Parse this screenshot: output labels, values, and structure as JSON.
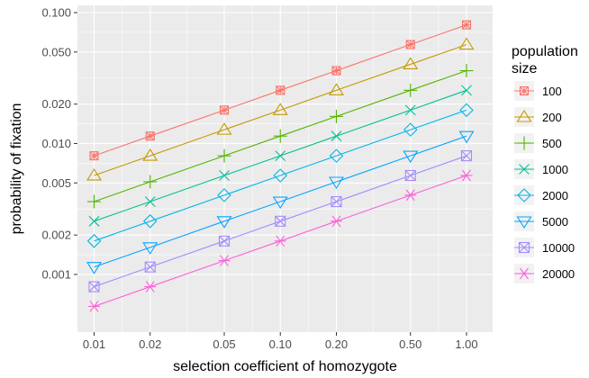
{
  "chart_data": {
    "type": "line",
    "title": "",
    "xlabel": "selection coefficient of homozygote",
    "ylabel": "probability of fixation",
    "x_scale": "log",
    "y_scale": "log",
    "xlim": [
      0.01,
      1.0
    ],
    "ylim": [
      0.00046,
      0.1
    ],
    "x": [
      0.01,
      0.02,
      0.05,
      0.1,
      0.2,
      0.5,
      1.0
    ],
    "x_tick_values": [
      0.01,
      0.02,
      0.05,
      0.1,
      0.2,
      0.5,
      1.0
    ],
    "x_tick_labels": [
      "0.01",
      "0.02",
      "0.05",
      "0.10",
      "0.20",
      "0.50",
      "1.00"
    ],
    "y_tick_values": [
      0.001,
      0.002,
      0.005,
      0.01,
      0.02,
      0.05,
      0.1
    ],
    "y_tick_labels": [
      "0.001",
      "0.002",
      "0.005",
      "0.010",
      "0.020",
      "0.050",
      "0.100"
    ],
    "grid": true,
    "panel_background": "#ebebeb",
    "grid_color": "#ffffff",
    "legend": {
      "title_line1": "population",
      "title_line2": "size",
      "position": "right"
    },
    "series": [
      {
        "name": "100",
        "color": "#F8766D",
        "shape": "square-cross",
        "values": [
          0.00806,
          0.0114,
          0.018,
          0.0255,
          0.036,
          0.057,
          0.0806
        ]
      },
      {
        "name": "200",
        "color": "#C49A00",
        "shape": "triangle-up",
        "values": [
          0.0057,
          0.00806,
          0.01275,
          0.018,
          0.0255,
          0.0403,
          0.057
        ]
      },
      {
        "name": "500",
        "color": "#53B400",
        "shape": "plus",
        "values": [
          0.0036,
          0.0051,
          0.00806,
          0.0114,
          0.0161,
          0.0255,
          0.036
        ]
      },
      {
        "name": "1000",
        "color": "#00C094",
        "shape": "cross",
        "values": [
          0.00255,
          0.0036,
          0.0057,
          0.00806,
          0.0114,
          0.018,
          0.0255
        ]
      },
      {
        "name": "2000",
        "color": "#00B6EB",
        "shape": "diamond",
        "values": [
          0.0018,
          0.00255,
          0.00403,
          0.0057,
          0.00806,
          0.01275,
          0.018
        ]
      },
      {
        "name": "5000",
        "color": "#06A4FF",
        "shape": "triangle-down",
        "values": [
          0.00114,
          0.00161,
          0.00255,
          0.0036,
          0.0051,
          0.00806,
          0.0114
        ]
      },
      {
        "name": "10000",
        "color": "#A58AFF",
        "shape": "square-x",
        "values": [
          0.000806,
          0.00114,
          0.0018,
          0.00255,
          0.0036,
          0.0057,
          0.00806
        ]
      },
      {
        "name": "20000",
        "color": "#FB61D7",
        "shape": "asterisk",
        "values": [
          0.00057,
          0.000806,
          0.001275,
          0.0018,
          0.00255,
          0.00403,
          0.0057
        ]
      }
    ]
  }
}
